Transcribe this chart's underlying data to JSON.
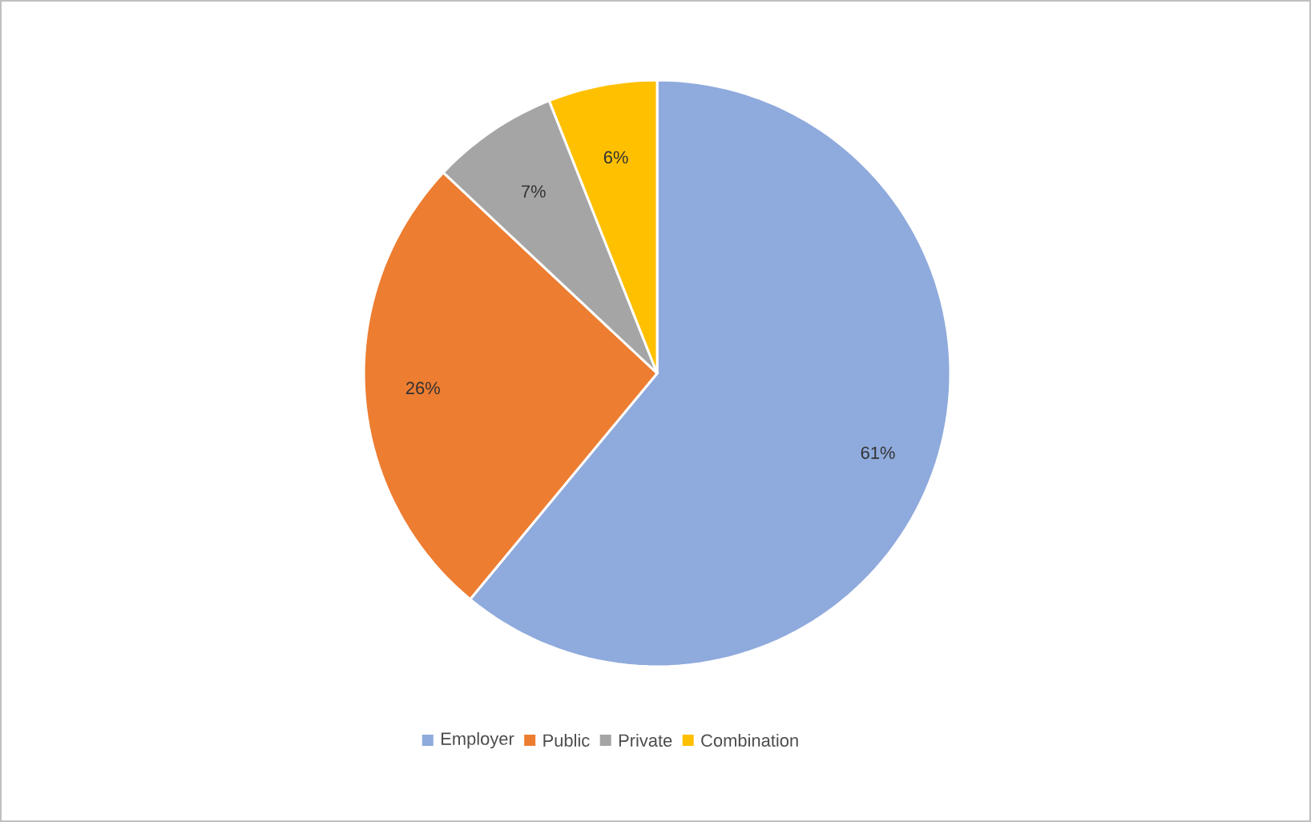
{
  "chart_data": {
    "type": "pie",
    "categories": [
      "Employer",
      "Public",
      "Private",
      "Combination"
    ],
    "values": [
      61,
      26,
      7,
      6
    ],
    "colors": [
      "#8faadc",
      "#ed7d31",
      "#a5a5a5",
      "#ffc000"
    ],
    "value_labels": [
      "61%",
      "26%",
      "7%",
      "6%"
    ],
    "legend": "bottom"
  }
}
